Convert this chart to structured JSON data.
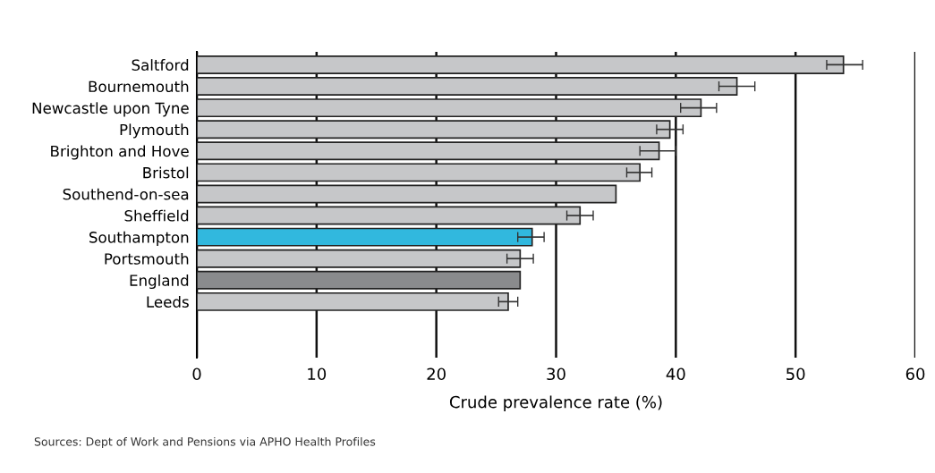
{
  "chart_data": {
    "type": "bar",
    "orientation": "horizontal",
    "categories": [
      "Saltford",
      "Bournemouth",
      "Newcastle upon Tyne",
      "Plymouth",
      "Brighton and Hove",
      "Bristol",
      "Southend-on-sea",
      "Sheffield",
      "Southampton",
      "Portsmouth",
      "England",
      "Leeds"
    ],
    "values": [
      54.0,
      45.1,
      42.1,
      39.5,
      38.6,
      37.0,
      35.0,
      32.0,
      28.0,
      27.0,
      27.0,
      26.0
    ],
    "errors": [
      [
        52.6,
        55.6
      ],
      [
        43.6,
        46.6
      ],
      [
        40.4,
        43.4
      ],
      [
        38.4,
        40.6
      ],
      [
        37.0,
        40.0
      ],
      [
        35.9,
        38.0
      ],
      null,
      [
        30.9,
        33.1
      ],
      [
        26.8,
        29.0
      ],
      [
        25.9,
        28.1
      ],
      null,
      [
        25.2,
        26.8
      ]
    ],
    "colors": [
      "#c6c7c9",
      "#c6c7c9",
      "#c6c7c9",
      "#c6c7c9",
      "#c6c7c9",
      "#c6c7c9",
      "#c6c7c9",
      "#c6c7c9",
      "#31b8de",
      "#c6c7c9",
      "#8a8b8d",
      "#c6c7c9"
    ],
    "xlim": [
      0,
      60
    ],
    "xticks": [
      0,
      10,
      20,
      30,
      40,
      50,
      60
    ],
    "xlabel": "Crude prevalence rate (%)",
    "grid": "x",
    "annotations": [
      "Sources: Dept of Work and Pensions via APHO Health Profiles"
    ]
  }
}
